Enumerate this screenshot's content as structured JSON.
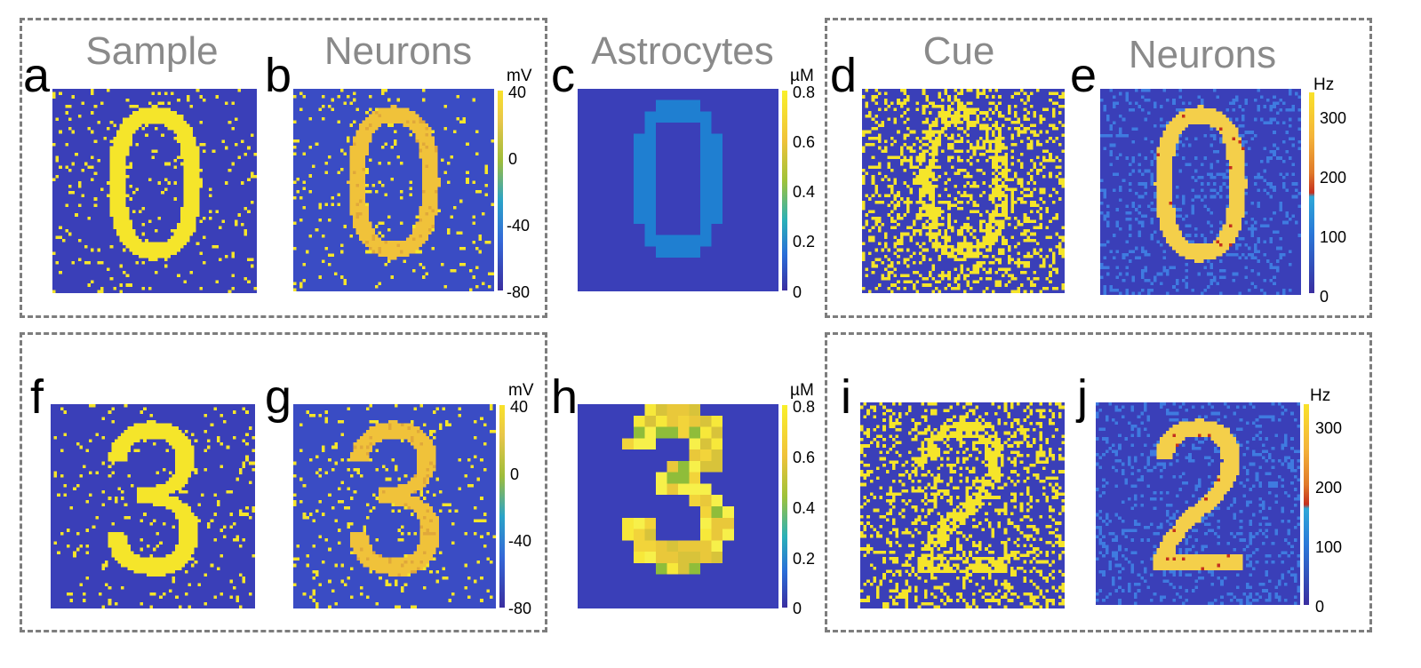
{
  "titles": {
    "sample": "Sample",
    "neurons_top": "Neurons",
    "astrocytes": "Astrocytes",
    "cue": "Cue",
    "neurons_right": "Neurons"
  },
  "panels": {
    "a": "a",
    "b": "b",
    "c": "c",
    "d": "d",
    "e": "e",
    "f": "f",
    "g": "g",
    "h": "h",
    "i": "i",
    "j": "j"
  },
  "digits": {
    "a": "0",
    "b": "0",
    "c": "0",
    "d": "0",
    "e": "0",
    "f": "3",
    "g": "3",
    "h": "3",
    "i": "2",
    "j": "2"
  },
  "colorbars": {
    "mv": {
      "unit": "mV",
      "ticks": [
        "40",
        "0",
        "-40",
        "-80"
      ],
      "range": [
        -80,
        40
      ]
    },
    "um": {
      "unit": "µM",
      "ticks": [
        "0.8",
        "0.6",
        "0.4",
        "0.2",
        "0"
      ],
      "range": [
        0,
        0.8
      ]
    },
    "hz": {
      "unit": "Hz",
      "ticks": [
        "300",
        "200",
        "100",
        "0"
      ],
      "range": [
        0,
        330
      ]
    }
  },
  "colors": {
    "background_blue": "#3a3fb8",
    "noise_yellow": "#f5e52a",
    "neuron_orange": "#f0c23a",
    "astro_blue": "#1f7fd1",
    "astro_yellow": "#f7e83a",
    "rate_yellow": "#f4cf4a",
    "frame_gray": "#7d7d7d",
    "title_gray": "#8a8a8a"
  }
}
